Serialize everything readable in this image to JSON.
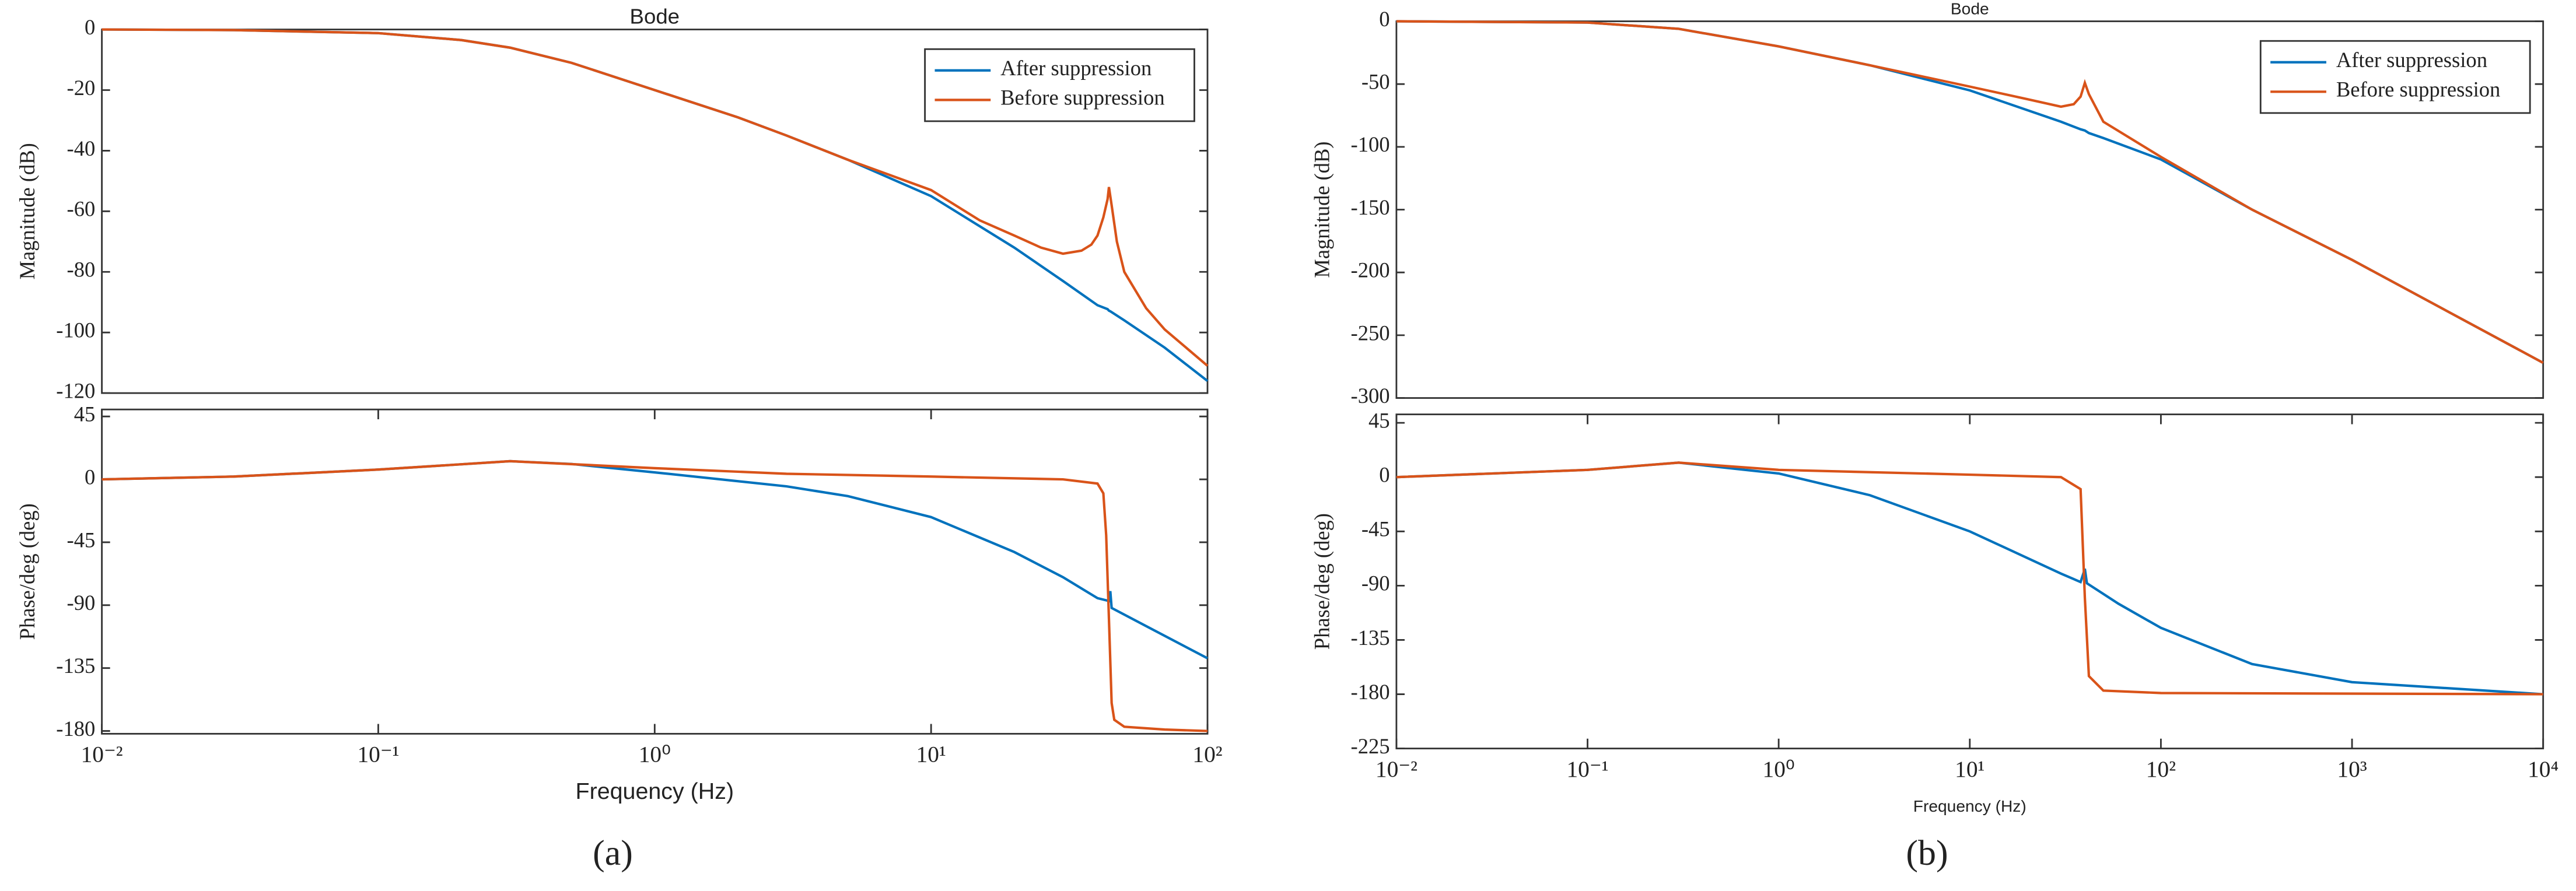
{
  "chart_data": [
    {
      "type": "line",
      "title": "Bode",
      "ylabel": "Magnitude (dB)",
      "xscale": "log",
      "legend": "upper right",
      "xlim": [
        0.01,
        100
      ],
      "ylim": [
        -120,
        0
      ],
      "yticks": [
        0,
        -20,
        -40,
        -60,
        -80,
        -100,
        -120
      ],
      "series": [
        {
          "name": "After suppression",
          "color": "#0072bd",
          "x": [
            0.01,
            0.03,
            0.1,
            0.2,
            0.3,
            0.5,
            1,
            2,
            3,
            5,
            10,
            20,
            30,
            40,
            43.5,
            44,
            44.5,
            50,
            70,
            100
          ],
          "values": [
            0,
            -0.2,
            -1.2,
            -3.5,
            -6,
            -11,
            -20,
            -29,
            -35,
            -43,
            -55,
            -72,
            -83,
            -91,
            -92.3,
            -92.8,
            -93,
            -96,
            -105,
            -116
          ]
        },
        {
          "name": "Before suppression",
          "color": "#d95319",
          "x": [
            0.01,
            0.03,
            0.1,
            0.2,
            0.3,
            0.5,
            1,
            2,
            3,
            5,
            10,
            15,
            20,
            25,
            30,
            35,
            38,
            40,
            42,
            43.5,
            44,
            45,
            47,
            50,
            60,
            70,
            100
          ],
          "values": [
            0,
            -0.2,
            -1.2,
            -3.5,
            -6,
            -11,
            -20,
            -29,
            -35,
            -43,
            -53,
            -63,
            -68,
            -72,
            -74,
            -73,
            -71,
            -68,
            -62,
            -56,
            -52,
            -58,
            -70,
            -80,
            -92,
            -99,
            -111
          ]
        }
      ]
    },
    {
      "type": "line",
      "ylabel": "Phase/deg (deg)",
      "xlabel": "Frequency  (Hz)",
      "xscale": "log",
      "xlim": [
        0.01,
        100
      ],
      "ylim": [
        -182,
        50
      ],
      "xticks": [
        {
          "value": 0.01,
          "label": "10⁻²"
        },
        {
          "value": 0.1,
          "label": "10⁻¹"
        },
        {
          "value": 1,
          "label": "10⁰"
        },
        {
          "value": 10,
          "label": "10¹"
        },
        {
          "value": 100,
          "label": "10²"
        }
      ],
      "yticks": [
        45,
        0,
        -45,
        -90,
        -135,
        -180
      ],
      "series": [
        {
          "name": "After suppression",
          "color": "#0072bd",
          "x": [
            0.01,
            0.03,
            0.1,
            0.3,
            0.5,
            1,
            3,
            5,
            10,
            20,
            30,
            40,
            44,
            44.5,
            45,
            60,
            100
          ],
          "values": [
            0,
            2,
            7,
            13,
            11,
            5,
            -5,
            -12,
            -27,
            -52,
            -70,
            -85,
            -87,
            -80,
            -92,
            -105,
            -128
          ]
        },
        {
          "name": "Before suppression",
          "color": "#d95319",
          "x": [
            0.01,
            0.03,
            0.1,
            0.3,
            1,
            3,
            10,
            30,
            40,
            42,
            43,
            44,
            45,
            46,
            50,
            70,
            100
          ],
          "values": [
            0,
            2,
            7,
            13,
            8,
            4,
            2,
            0,
            -3,
            -10,
            -40,
            -100,
            -160,
            -172,
            -177,
            -179,
            -180
          ]
        }
      ]
    },
    {
      "type": "line",
      "title": "Bode",
      "ylabel": "Magnitude (dB)",
      "xscale": "log",
      "legend": "upper right",
      "xlim": [
        0.01,
        10000
      ],
      "ylim": [
        -300,
        0
      ],
      "yticks": [
        0,
        -50,
        -100,
        -150,
        -200,
        -250,
        -300
      ],
      "series": [
        {
          "name": "After suppression",
          "color": "#0072bd",
          "x": [
            0.01,
            0.1,
            0.3,
            1,
            3,
            10,
            30,
            38,
            40,
            42,
            50,
            100,
            300,
            1000,
            10000
          ],
          "values": [
            0,
            -1,
            -6,
            -20,
            -35,
            -55,
            -80,
            -86,
            -87,
            -89,
            -93,
            -110,
            -150,
            -190,
            -272
          ]
        },
        {
          "name": "Before suppression",
          "color": "#d95319",
          "x": [
            0.01,
            0.1,
            0.3,
            1,
            3,
            10,
            20,
            30,
            35,
            38,
            40,
            42,
            50,
            100,
            300,
            1000,
            10000
          ],
          "values": [
            0,
            -1,
            -6,
            -20,
            -35,
            -52,
            -62,
            -68,
            -66,
            -60,
            -49,
            -58,
            -80,
            -108,
            -150,
            -190,
            -272
          ]
        }
      ]
    },
    {
      "type": "line",
      "ylabel": "Phase/deg (deg)",
      "xlabel": "Frequency  (Hz)",
      "xscale": "log",
      "xlim": [
        0.01,
        10000
      ],
      "ylim": [
        -225,
        52
      ],
      "xticks": [
        {
          "value": 0.01,
          "label": "10⁻²"
        },
        {
          "value": 0.1,
          "label": "10⁻¹"
        },
        {
          "value": 1,
          "label": "10⁰"
        },
        {
          "value": 10,
          "label": "10¹"
        },
        {
          "value": 100,
          "label": "10²"
        },
        {
          "value": 1000,
          "label": "10³"
        },
        {
          "value": 10000,
          "label": "10⁴"
        }
      ],
      "yticks": [
        45,
        0,
        -45,
        -90,
        -135,
        -180,
        -225
      ],
      "series": [
        {
          "name": "After suppression",
          "color": "#0072bd",
          "x": [
            0.01,
            0.1,
            0.3,
            1,
            3,
            10,
            30,
            38,
            40,
            41,
            60,
            100,
            300,
            1000,
            10000
          ],
          "values": [
            0,
            6,
            12,
            3,
            -15,
            -45,
            -80,
            -87,
            -76,
            -88,
            -105,
            -125,
            -155,
            -170,
            -180
          ]
        },
        {
          "name": "Before suppression",
          "color": "#d95319",
          "x": [
            0.01,
            0.1,
            0.3,
            1,
            10,
            30,
            38,
            40,
            42,
            50,
            100,
            10000
          ],
          "values": [
            0,
            6,
            12,
            6,
            2,
            0,
            -10,
            -100,
            -165,
            -177,
            -179,
            -180
          ]
        }
      ]
    }
  ],
  "captions": [
    "(a)",
    "(b)"
  ]
}
